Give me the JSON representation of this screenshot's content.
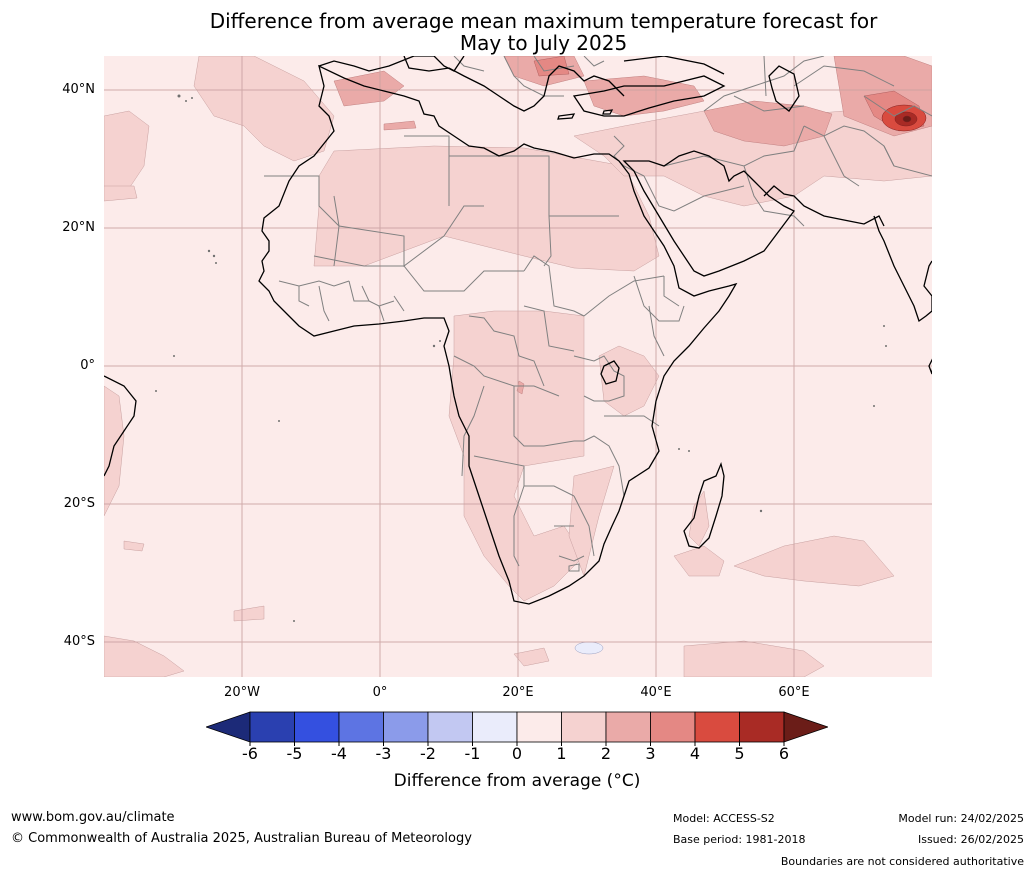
{
  "title_line1": "Difference from average mean maximum temperature forecast for",
  "title_line2": "May to July 2025",
  "lat_labels": [
    "40°N",
    "20°N",
    "0°",
    "20°S",
    "40°S"
  ],
  "lon_labels": [
    "20°W",
    "0°",
    "20°E",
    "40°E",
    "60°E"
  ],
  "colorbar": {
    "label": "Difference from average (°C)",
    "label_prefix": "Difference from average (",
    "label_unit": "°C",
    "label_suffix": ")",
    "ticks": [
      "-6",
      "-5",
      "-4",
      "-3",
      "-2",
      "-1",
      "0",
      "1",
      "2",
      "3",
      "4",
      "5",
      "6"
    ],
    "colors": [
      "#1c2a78",
      "#2a40b0",
      "#3450e0",
      "#5d74e3",
      "#8b9bea",
      "#c2c8f2",
      "#eaecfb",
      "#fcebea",
      "#f5d2d0",
      "#eaaaa8",
      "#e48884",
      "#d94b3f",
      "#a92b25",
      "#6b1d18"
    ]
  },
  "footer": {
    "website": "www.bom.gov.au/climate",
    "copyright": "© Commonwealth of Australia 2025, Australian Bureau of Meteorology",
    "model": "Model: ACCESS-S2",
    "base_period": "Base period: 1981-2018",
    "model_run": "Model run: 24/02/2025",
    "issued": "Issued: 26/02/2025",
    "disclaimer": "Boundaries are not considered authoritative"
  }
}
